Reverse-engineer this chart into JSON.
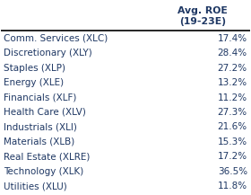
{
  "title_line1": "Avg. ROE",
  "title_line2": "(19-23E)",
  "rows": [
    {
      "label": "Comm. Services (XLC)",
      "value": "17.4%"
    },
    {
      "label": "Discretionary (XLY)",
      "value": "28.4%"
    },
    {
      "label": "Staples (XLP)",
      "value": "27.2%"
    },
    {
      "label": "Energy (XLE)",
      "value": "13.2%"
    },
    {
      "label": "Financials (XLF)",
      "value": "11.2%"
    },
    {
      "label": "Health Care (XLV)",
      "value": "27.3%"
    },
    {
      "label": "Industrials (XLI)",
      "value": "21.6%"
    },
    {
      "label": "Materials (XLB)",
      "value": "15.3%"
    },
    {
      "label": "Real Estate (XLRE)",
      "value": "17.2%"
    },
    {
      "label": "Technology (XLK)",
      "value": "36.5%"
    },
    {
      "label": "Utilities (XLU)",
      "value": "11.8%"
    }
  ],
  "bg_color": "#FFFFFF",
  "text_color": "#1F3864",
  "header_color": "#1F3864",
  "line_color": "#000000",
  "font_size": 7.5,
  "header_font_size": 7.8
}
